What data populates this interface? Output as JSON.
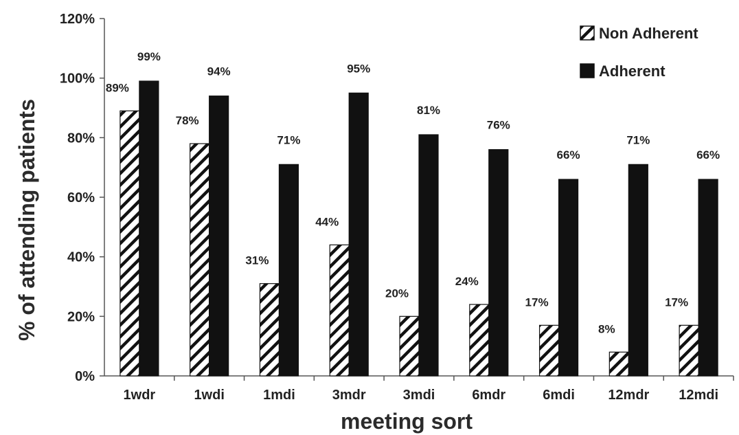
{
  "chart_data": {
    "type": "bar",
    "xlabel": "meeting sort",
    "ylabel": "% of attending patients",
    "ylim": [
      0,
      120
    ],
    "y_ticks": [
      0,
      20,
      40,
      60,
      80,
      100,
      120
    ],
    "y_tick_suffix": "%",
    "categories": [
      "1wdr",
      "1wdi",
      "1mdi",
      "3mdr",
      "3mdi",
      "6mdr",
      "6mdi",
      "12mdr",
      "12mdi"
    ],
    "series": [
      {
        "name": "Non Adherent",
        "values": [
          89,
          78,
          31,
          44,
          20,
          24,
          17,
          8,
          17
        ],
        "labels": [
          "89%",
          "78%",
          "31%",
          "44%",
          "20%",
          "24%",
          "17%",
          "8%",
          "17%"
        ],
        "pattern": "diagonal-hatch",
        "color": "#111111"
      },
      {
        "name": "Adherent",
        "values": [
          99,
          94,
          71,
          95,
          81,
          76,
          66,
          71,
          66
        ],
        "labels": [
          "99%",
          "94%",
          "71%",
          "95%",
          "81%",
          "76%",
          "66%",
          "71%",
          "66%"
        ],
        "pattern": "solid",
        "color": "#111111"
      }
    ],
    "grid": false,
    "legend_position": "top-right"
  }
}
